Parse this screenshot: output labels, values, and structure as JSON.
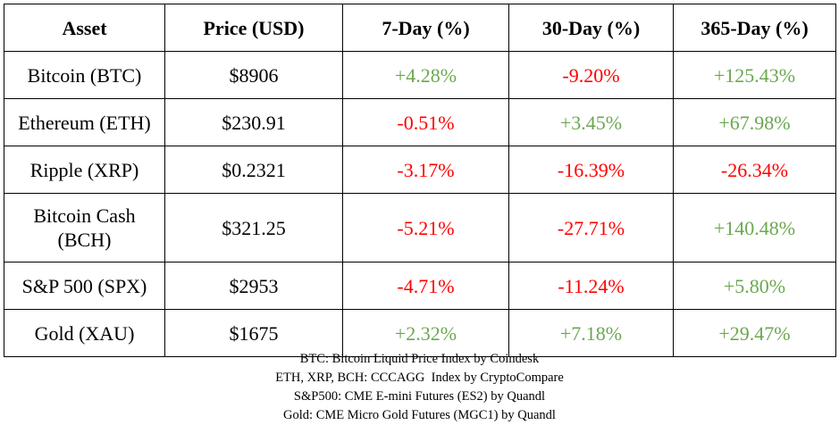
{
  "table": {
    "headers": [
      "Asset",
      "Price (USD)",
      "7-Day (%)",
      "30-Day (%)",
      "365-Day (%)"
    ],
    "rows": [
      {
        "asset": "Bitcoin (BTC)",
        "price": "$8906",
        "d7": "+4.28%",
        "d30": "-9.20%",
        "d365": "+125.43%"
      },
      {
        "asset": "Ethereum (ETH)",
        "price": "$230.91",
        "d7": "-0.51%",
        "d30": "+3.45%",
        "d365": "+67.98%"
      },
      {
        "asset": "Ripple (XRP)",
        "price": "$0.2321",
        "d7": "-3.17%",
        "d30": "-16.39%",
        "d365": "-26.34%"
      },
      {
        "asset": "Bitcoin Cash (BCH)",
        "price": "$321.25",
        "d7": "-5.21%",
        "d30": "-27.71%",
        "d365": "+140.48%"
      },
      {
        "asset": "S&P 500 (SPX)",
        "price": "$2953",
        "d7": "-4.71%",
        "d30": "-11.24%",
        "d365": "+5.80%"
      },
      {
        "asset": "Gold (XAU)",
        "price": "$1675",
        "d7": "+2.32%",
        "d30": "+7.18%",
        "d365": "+29.47%"
      }
    ]
  },
  "notes": [
    "BTC: Bitcoin Liquid Price Index by Coindesk",
    "ETH, XRP, BCH: CCCAGG  Index by CryptoCompare",
    "S&P500: CME E-mini Futures (ES2) by Quandl",
    "Gold: CME Micro Gold Futures (MGC1) by Quandl"
  ],
  "colors": {
    "positive": "#6aa84f",
    "negative": "#ff0000"
  }
}
